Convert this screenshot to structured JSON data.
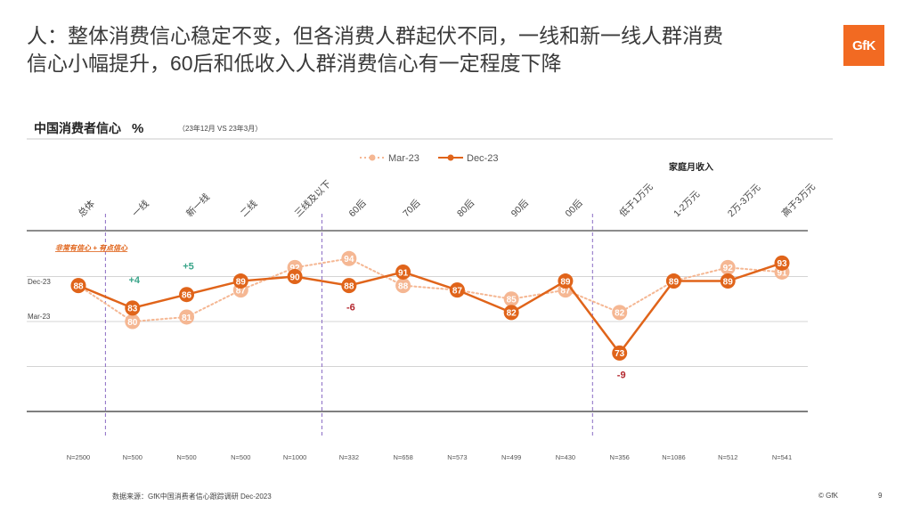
{
  "headline": {
    "line1": "人：整体消费信心稳定不变，但各消费人群起伏不同，一线和新一线人群消费",
    "line2": "信心小幅提升，60后和低收入人群消费信心有一定程度下降"
  },
  "logo": "GfK",
  "chart_title": "中国消费者信心",
  "chart_title_unit": "%",
  "chart_subtitle": "（23年12月 VS 23年3月）",
  "footer": {
    "source": "数据来源：GfK中国消费者信心跟踪调研 Dec-2023",
    "copyright": "© GfK",
    "page": "9"
  },
  "chart_data": {
    "type": "line",
    "categories": [
      "总体",
      "一线",
      "新一线",
      "二线",
      "三线及以下",
      "60后",
      "70后",
      "80后",
      "90后",
      "00后",
      "低于1万元",
      "1-2万元",
      "2万-3万元",
      "高于3万元"
    ],
    "sample_sizes": [
      "N=2500",
      "N=500",
      "N=500",
      "N=500",
      "N=1000",
      "N=332",
      "N=658",
      "N=573",
      "N=499",
      "N=430",
      "N=356",
      "N=1086",
      "N=512",
      "N=541"
    ],
    "series": [
      {
        "name": "Mar-23",
        "values": [
          88,
          80,
          81,
          87,
          92,
          94,
          88,
          87,
          85,
          87,
          82,
          89,
          92,
          91
        ],
        "color": "#f5b793",
        "style": "dotted"
      },
      {
        "name": "Dec-23",
        "values": [
          88,
          83,
          86,
          89,
          90,
          88,
          91,
          87,
          82,
          89,
          73,
          89,
          89,
          93
        ],
        "color": "#e0641a",
        "style": "solid"
      }
    ],
    "ylim": [
      60,
      100
    ],
    "legend_position": "top",
    "group_label": "家庭月收入",
    "row_label": "非常有信心 + 有点信心",
    "y_row_labels": [
      "Dec-23",
      "Mar-23"
    ],
    "changes": [
      {
        "category": "一线",
        "text": "+4",
        "color": "#3aa58a"
      },
      {
        "category": "新一线",
        "text": "+5",
        "color": "#3aa58a"
      },
      {
        "category": "60后",
        "text": "-6",
        "color": "#b3262d"
      },
      {
        "category": "低于1万元",
        "text": "-9",
        "color": "#b3262d"
      }
    ]
  }
}
